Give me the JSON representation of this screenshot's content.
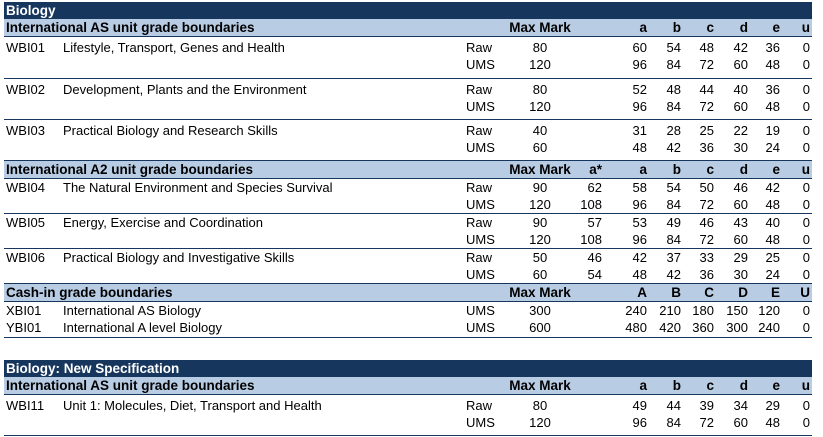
{
  "biology": {
    "title": "Biology",
    "as": {
      "header": "International AS unit grade boundaries",
      "max_label": "Max Mark",
      "grades": [
        "",
        "a",
        "b",
        "c",
        "d",
        "e",
        "u"
      ],
      "units": [
        {
          "code": "WBI01",
          "title": "Lifestyle, Transport, Genes and Health",
          "raw": {
            "label": "Raw",
            "max": "80",
            "grades": [
              "",
              "60",
              "54",
              "48",
              "42",
              "36",
              "0"
            ]
          },
          "ums": {
            "label": "UMS",
            "max": "120",
            "grades": [
              "",
              "96",
              "84",
              "72",
              "60",
              "48",
              "0"
            ]
          }
        },
        {
          "code": "WBI02",
          "title": "Development, Plants and the Environment",
          "raw": {
            "label": "Raw",
            "max": "80",
            "grades": [
              "",
              "52",
              "48",
              "44",
              "40",
              "36",
              "0"
            ]
          },
          "ums": {
            "label": "UMS",
            "max": "120",
            "grades": [
              "",
              "96",
              "84",
              "72",
              "60",
              "48",
              "0"
            ]
          }
        },
        {
          "code": "WBI03",
          "title": "Practical Biology and Research Skills",
          "raw": {
            "label": "Raw",
            "max": "40",
            "grades": [
              "",
              "31",
              "28",
              "25",
              "22",
              "19",
              "0"
            ]
          },
          "ums": {
            "label": "UMS",
            "max": "60",
            "grades": [
              "",
              "48",
              "42",
              "36",
              "30",
              "24",
              "0"
            ]
          }
        }
      ]
    },
    "a2": {
      "header": "International A2 unit grade boundaries",
      "max_label": "Max Mark",
      "grades": [
        "a*",
        "a",
        "b",
        "c",
        "d",
        "e",
        "u"
      ],
      "units": [
        {
          "code": "WBI04",
          "title": "The Natural Environment and Species Survival",
          "raw": {
            "label": "Raw",
            "max": "90",
            "grades": [
              "62",
              "58",
              "54",
              "50",
              "46",
              "42",
              "0"
            ]
          },
          "ums": {
            "label": "UMS",
            "max": "120",
            "grades": [
              "108",
              "96",
              "84",
              "72",
              "60",
              "48",
              "0"
            ]
          }
        },
        {
          "code": "WBI05",
          "title": "Energy, Exercise and Coordination",
          "raw": {
            "label": "Raw",
            "max": "90",
            "grades": [
              "57",
              "53",
              "49",
              "46",
              "43",
              "40",
              "0"
            ]
          },
          "ums": {
            "label": "UMS",
            "max": "120",
            "grades": [
              "108",
              "96",
              "84",
              "72",
              "60",
              "48",
              "0"
            ]
          }
        },
        {
          "code": "WBI06",
          "title": "Practical Biology and Investigative Skills",
          "raw": {
            "label": "Raw",
            "max": "50",
            "grades": [
              "46",
              "42",
              "37",
              "33",
              "29",
              "25",
              "0"
            ]
          },
          "ums": {
            "label": "UMS",
            "max": "60",
            "grades": [
              "54",
              "48",
              "42",
              "36",
              "30",
              "24",
              "0"
            ]
          }
        }
      ]
    },
    "cashin": {
      "header": "Cash-in grade boundaries",
      "max_label": "Max Mark",
      "grades": [
        "A",
        "B",
        "C",
        "D",
        "E",
        "U"
      ],
      "rows": [
        {
          "code": "XBI01",
          "title": "International AS Biology",
          "type": "UMS",
          "max": "300",
          "grades": [
            "240",
            "210",
            "180",
            "150",
            "120",
            "0"
          ]
        },
        {
          "code": "YBI01",
          "title": "International A level Biology",
          "type": "UMS",
          "max": "600",
          "grades": [
            "480",
            "420",
            "360",
            "300",
            "240",
            "0"
          ]
        }
      ]
    }
  },
  "newspec": {
    "title": "Biology: New Specification",
    "as": {
      "header": "International AS unit grade boundaries",
      "max_label": "Max Mark",
      "grades": [
        "",
        "a",
        "b",
        "c",
        "d",
        "e",
        "u"
      ],
      "units": [
        {
          "code": "WBI11",
          "title": "Unit 1: Molecules, Diet, Transport and Health",
          "raw": {
            "label": "Raw",
            "max": "80",
            "grades": [
              "",
              "49",
              "44",
              "39",
              "34",
              "29",
              "0"
            ]
          },
          "ums": {
            "label": "UMS",
            "max": "120",
            "grades": [
              "",
              "96",
              "84",
              "72",
              "60",
              "48",
              "0"
            ]
          }
        }
      ]
    }
  }
}
